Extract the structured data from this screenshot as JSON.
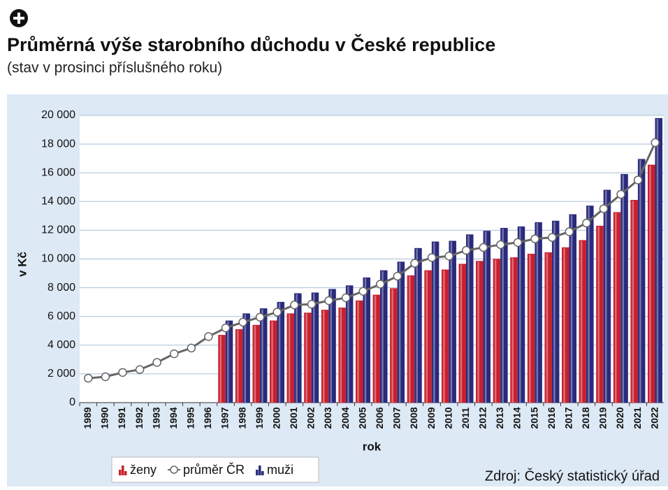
{
  "chart_data": {
    "type": "bar",
    "title": "Průměrná výše starobního důchodu v České republice",
    "subtitle": "(stav v prosinci příslušného roku)",
    "y_label": "v Kč",
    "x_label": "rok",
    "source": "Zdroj: Český statistický úřad",
    "categories": [
      "1989",
      "1990",
      "1991",
      "1992",
      "1993",
      "1994",
      "1995",
      "1996",
      "1997",
      "1998",
      "1999",
      "2000",
      "2001",
      "2002",
      "2003",
      "2004",
      "2005",
      "2006",
      "2007",
      "2008",
      "2009",
      "2010",
      "2011",
      "2012",
      "2013",
      "2014",
      "2015",
      "2016",
      "2017",
      "2018",
      "2019",
      "2020",
      "2021",
      "2022"
    ],
    "series": [
      {
        "name": "ženy",
        "type": "bar",
        "color": "#c8202e",
        "values": [
          null,
          null,
          null,
          null,
          null,
          null,
          null,
          null,
          4700,
          5100,
          5400,
          5700,
          6200,
          6250,
          6450,
          6600,
          7100,
          7500,
          7950,
          8850,
          9200,
          9250,
          9650,
          9850,
          10000,
          10100,
          10350,
          10450,
          10800,
          11300,
          12300,
          13250,
          14100,
          16550
        ]
      },
      {
        "name": "průměr ČR",
        "type": "line",
        "color": "#666666",
        "values": [
          1700,
          1800,
          2100,
          2300,
          2800,
          3400,
          3800,
          4600,
          5200,
          5600,
          5950,
          6300,
          6800,
          6850,
          7100,
          7300,
          7750,
          8250,
          8800,
          9700,
          10100,
          10200,
          10600,
          10800,
          11000,
          11150,
          11400,
          11500,
          11900,
          12500,
          13500,
          14500,
          15500,
          18100
        ]
      },
      {
        "name": "muži",
        "type": "bar",
        "color": "#2a2a7c",
        "values": [
          null,
          null,
          null,
          null,
          null,
          null,
          null,
          null,
          5700,
          6200,
          6550,
          7000,
          7600,
          7650,
          7900,
          8150,
          8700,
          9200,
          9800,
          10750,
          11200,
          11250,
          11700,
          11950,
          12150,
          12250,
          12550,
          12650,
          13100,
          13700,
          14800,
          15900,
          16950,
          19800
        ]
      }
    ],
    "ylim": [
      0,
      20000
    ],
    "yticks": [
      0,
      {
        "value": 2000,
        "label": "2 000"
      },
      {
        "value": 4000,
        "label": "4 000"
      },
      {
        "value": 6000,
        "label": "6 000"
      },
      {
        "value": 8000,
        "label": "8 000"
      },
      {
        "value": 10000,
        "label": "10 000"
      },
      {
        "value": 12000,
        "label": "12 000"
      },
      {
        "value": 14000,
        "label": "14 000"
      },
      {
        "value": 16000,
        "label": "16 000"
      },
      {
        "value": 18000,
        "label": "18 000"
      },
      {
        "value": 20000,
        "label": "20 000"
      }
    ],
    "grid": true
  }
}
